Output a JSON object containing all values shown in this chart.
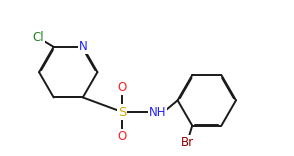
{
  "bg_color": "#ffffff",
  "bond_color": "#1a1a1a",
  "atom_colors": {
    "N": "#2020ff",
    "O": "#ff2020",
    "S": "#d4a800",
    "Cl": "#208020",
    "Br": "#8B0000",
    "C": "#1a1a1a"
  },
  "lw": 1.4,
  "fs": 8.5,
  "fig_width": 2.94,
  "fig_height": 1.56,
  "dpi": 100
}
